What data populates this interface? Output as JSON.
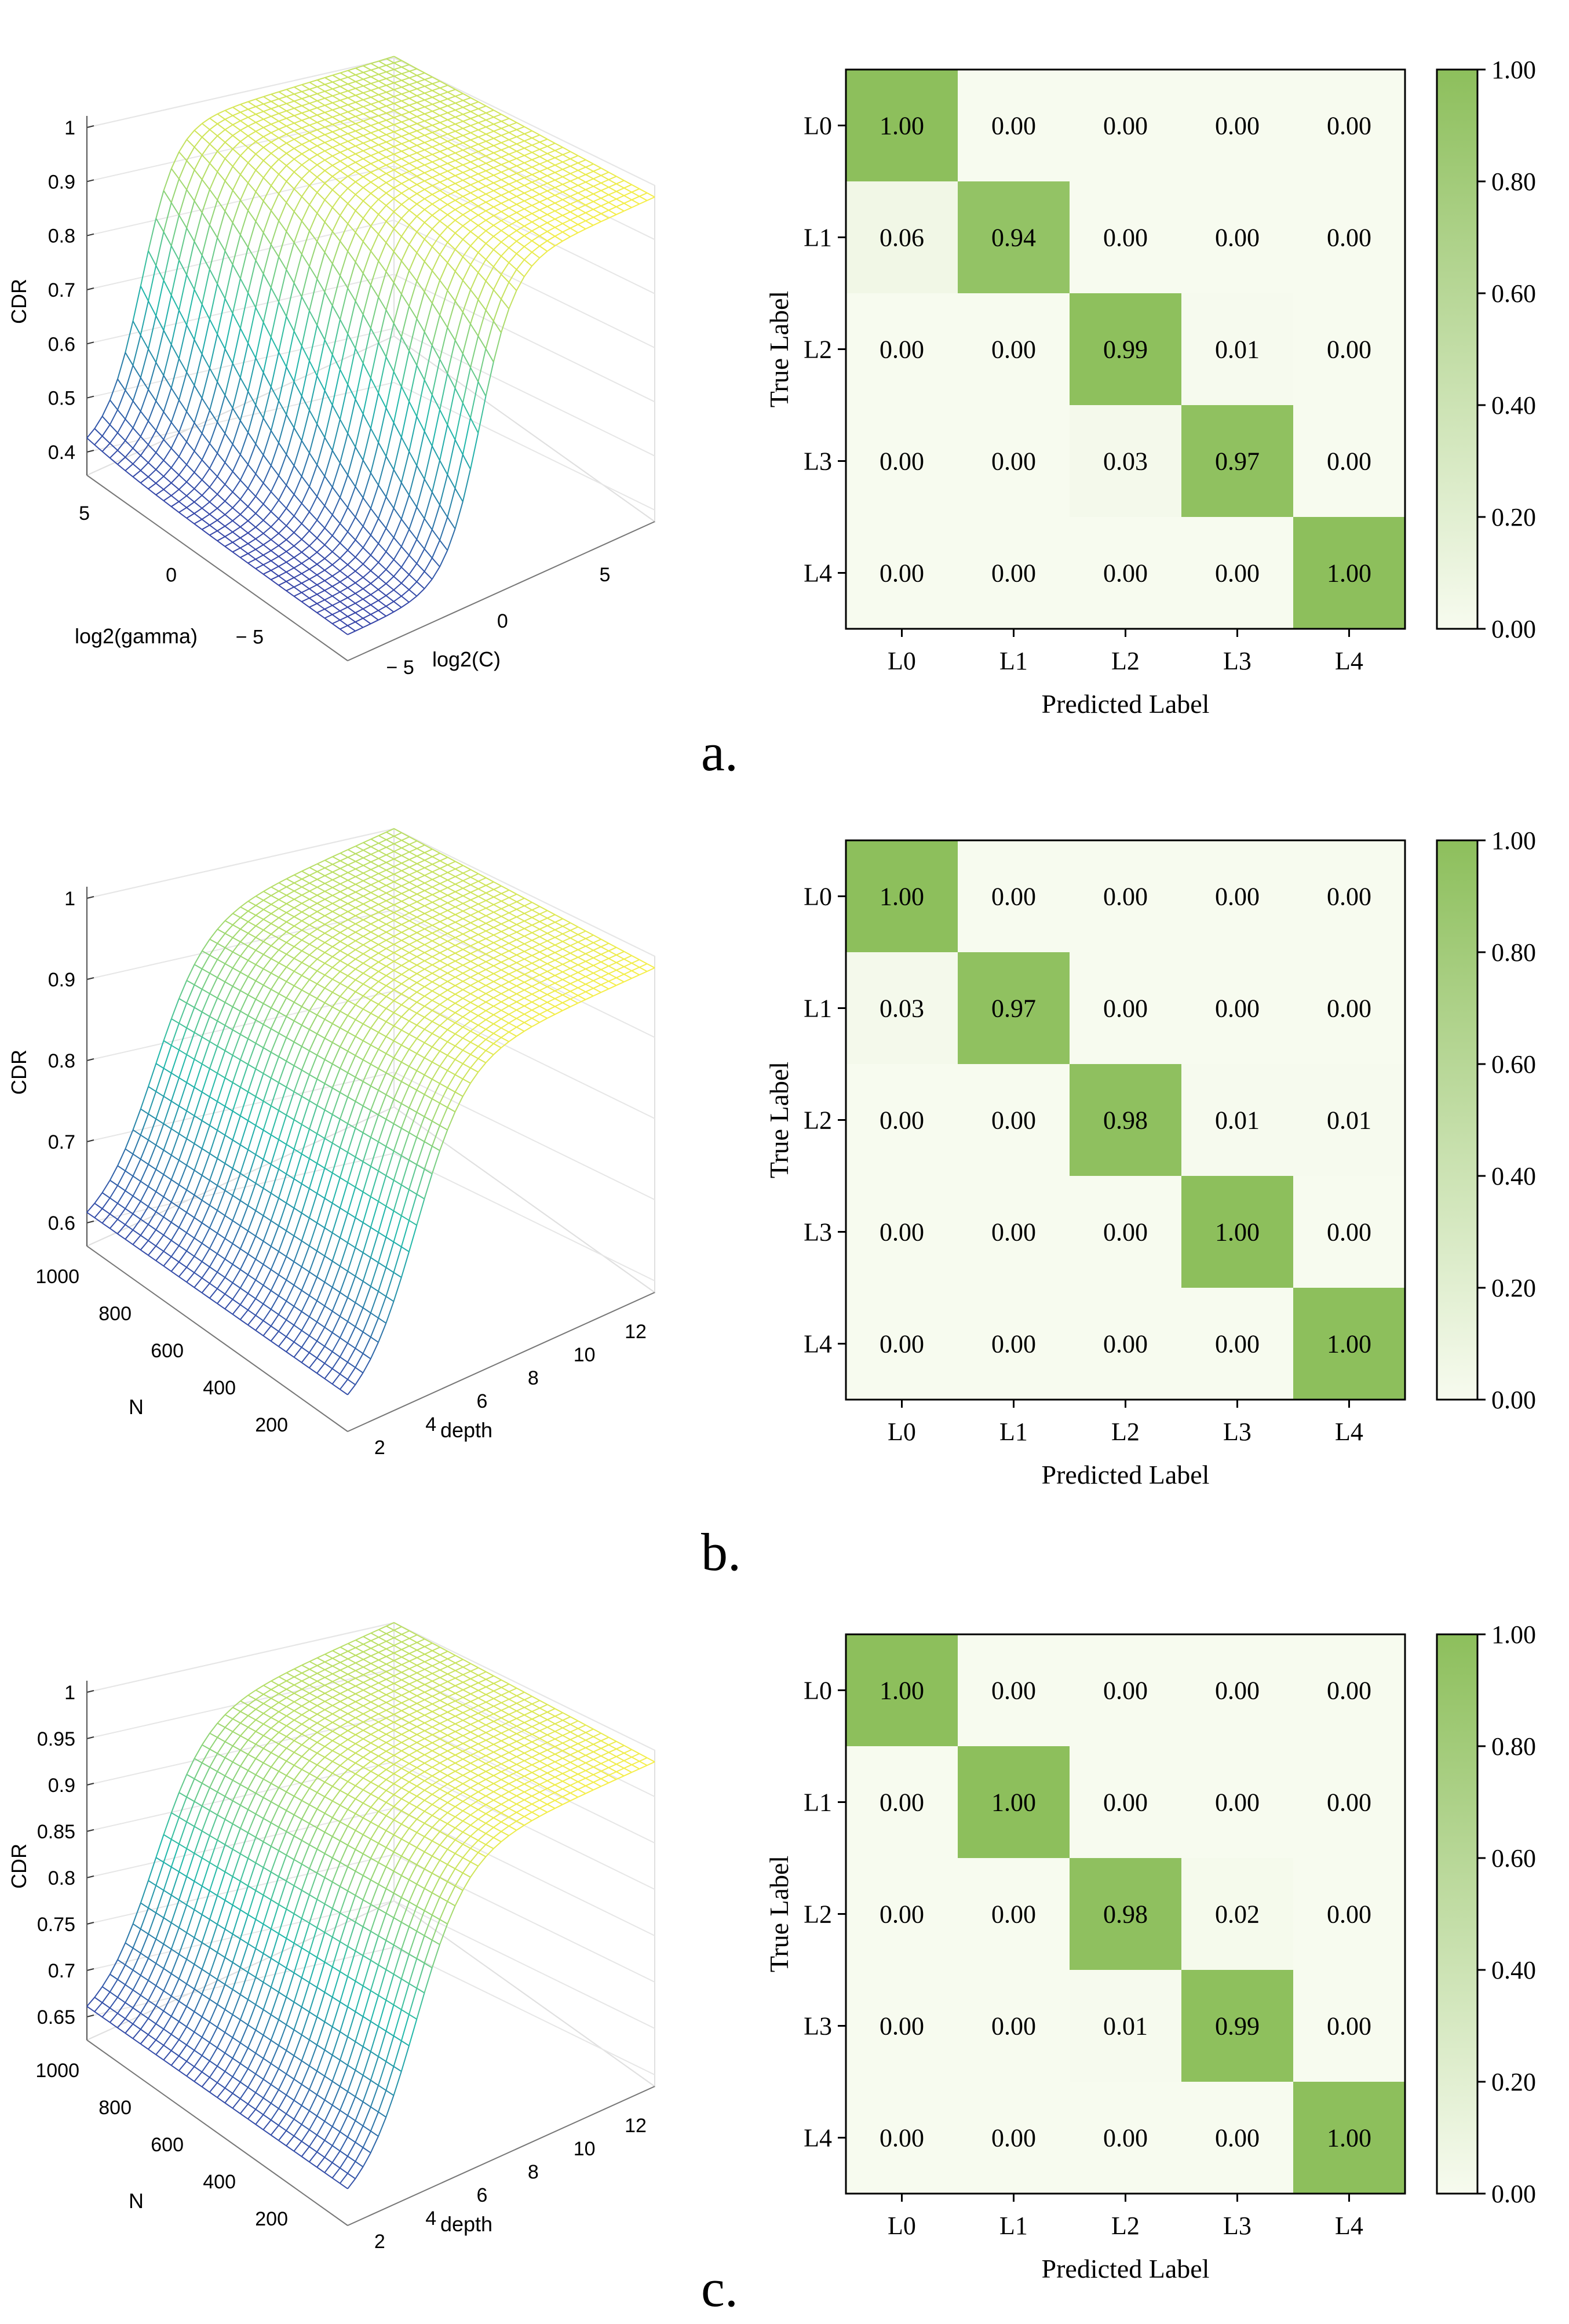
{
  "colors": {
    "green_max": "#8dbf5c",
    "green_min": "#f7fbef",
    "surface_low": "#3b2fa8",
    "surface_mid": "#20b8aa",
    "surface_high": "#f5ee4a",
    "surface_peak": "#f3b35a"
  },
  "chart_data": [
    {
      "type": "surface3d",
      "panel": "a",
      "zlabel": "CDR",
      "xlabel": "log2(gamma)",
      "ylabel": "log2(C)",
      "z_ticks": [
        "1",
        "0.9",
        "0.8",
        "0.7",
        "0.6",
        "0.5",
        "0.4"
      ],
      "x_ticks": [
        "5",
        "0",
        "− 5"
      ],
      "y_ticks": [
        "− 5",
        "0",
        "5"
      ]
    },
    {
      "type": "heatmap",
      "panel": "a",
      "ylabel": "True Label",
      "xlabel": "Predicted Label",
      "rows": [
        "L0",
        "L1",
        "L2",
        "L3",
        "L4"
      ],
      "cols": [
        "L0",
        "L1",
        "L2",
        "L3",
        "L4"
      ],
      "values": [
        [
          1.0,
          0.0,
          0.0,
          0.0,
          0.0
        ],
        [
          0.06,
          0.94,
          0.0,
          0.0,
          0.0
        ],
        [
          0.0,
          0.0,
          0.99,
          0.01,
          0.0
        ],
        [
          0.0,
          0.0,
          0.03,
          0.97,
          0.0
        ],
        [
          0.0,
          0.0,
          0.0,
          0.0,
          1.0
        ]
      ],
      "colorbar_ticks": [
        "1.00",
        "0.80",
        "0.60",
        "0.40",
        "0.20",
        "0.00"
      ],
      "range": [
        0,
        1
      ]
    },
    {
      "type": "surface3d",
      "panel": "b",
      "zlabel": "CDR",
      "xlabel": "N",
      "ylabel": "depth",
      "z_ticks": [
        "1",
        "0.9",
        "0.8",
        "0.7",
        "0.6"
      ],
      "x_ticks": [
        "1000",
        "800",
        "600",
        "400",
        "200"
      ],
      "y_ticks": [
        "2",
        "4",
        "6",
        "8",
        "10",
        "12"
      ]
    },
    {
      "type": "heatmap",
      "panel": "b",
      "ylabel": "True Label",
      "xlabel": "Predicted Label",
      "rows": [
        "L0",
        "L1",
        "L2",
        "L3",
        "L4"
      ],
      "cols": [
        "L0",
        "L1",
        "L2",
        "L3",
        "L4"
      ],
      "values": [
        [
          1.0,
          0.0,
          0.0,
          0.0,
          0.0
        ],
        [
          0.03,
          0.97,
          0.0,
          0.0,
          0.0
        ],
        [
          0.0,
          0.0,
          0.98,
          0.01,
          0.01
        ],
        [
          0.0,
          0.0,
          0.0,
          1.0,
          0.0
        ],
        [
          0.0,
          0.0,
          0.0,
          0.0,
          1.0
        ]
      ],
      "colorbar_ticks": [
        "1.00",
        "0.80",
        "0.60",
        "0.40",
        "0.20",
        "0.00"
      ],
      "range": [
        0,
        1
      ]
    },
    {
      "type": "surface3d",
      "panel": "c",
      "zlabel": "CDR",
      "xlabel": "N",
      "ylabel": "depth",
      "z_ticks": [
        "1",
        "0.95",
        "0.9",
        "0.85",
        "0.8",
        "0.75",
        "0.7",
        "0.65"
      ],
      "x_ticks": [
        "1000",
        "800",
        "600",
        "400",
        "200"
      ],
      "y_ticks": [
        "2",
        "4",
        "6",
        "8",
        "10",
        "12"
      ]
    },
    {
      "type": "heatmap",
      "panel": "c",
      "ylabel": "True Label",
      "xlabel": "Predicted Label",
      "rows": [
        "L0",
        "L1",
        "L2",
        "L3",
        "L4"
      ],
      "cols": [
        "L0",
        "L1",
        "L2",
        "L3",
        "L4"
      ],
      "values": [
        [
          1.0,
          0.0,
          0.0,
          0.0,
          0.0
        ],
        [
          0.0,
          1.0,
          0.0,
          0.0,
          0.0
        ],
        [
          0.0,
          0.0,
          0.98,
          0.02,
          0.0
        ],
        [
          0.0,
          0.0,
          0.01,
          0.99,
          0.0
        ],
        [
          0.0,
          0.0,
          0.0,
          0.0,
          1.0
        ]
      ],
      "colorbar_ticks": [
        "1.00",
        "0.80",
        "0.60",
        "0.40",
        "0.20",
        "0.00"
      ],
      "range": [
        0,
        1
      ]
    }
  ],
  "panel_labels": [
    "a.",
    "b.",
    "c."
  ]
}
